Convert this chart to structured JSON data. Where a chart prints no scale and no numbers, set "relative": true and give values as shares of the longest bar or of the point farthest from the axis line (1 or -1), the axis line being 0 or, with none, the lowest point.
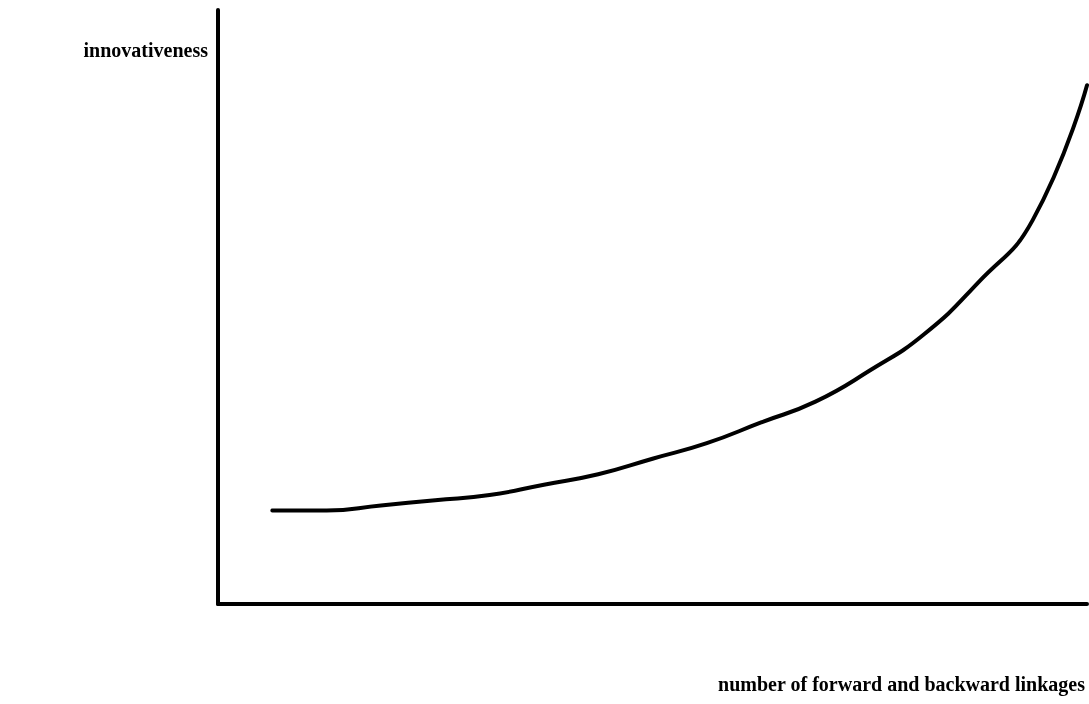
{
  "chart_data": {
    "type": "line",
    "relative": true,
    "xlabel": "number of forward and backward linkages",
    "ylabel": "innovativeness",
    "categories": [
      null,
      null,
      null,
      null,
      null,
      null,
      null,
      null,
      null,
      null,
      null,
      null,
      null,
      null,
      null,
      null,
      null
    ],
    "series": [
      {
        "color": "#000000",
        "values": [
          null,
          0.18,
          0.18,
          0.19,
          0.2,
          0.21,
          0.23,
          0.25,
          0.28,
          0.31,
          0.35,
          0.39,
          0.45,
          0.52,
          0.62,
          0.74,
          1
        ]
      }
    ],
    "marker": "none",
    "line_style": "solid",
    "tick_labels": false
  }
}
